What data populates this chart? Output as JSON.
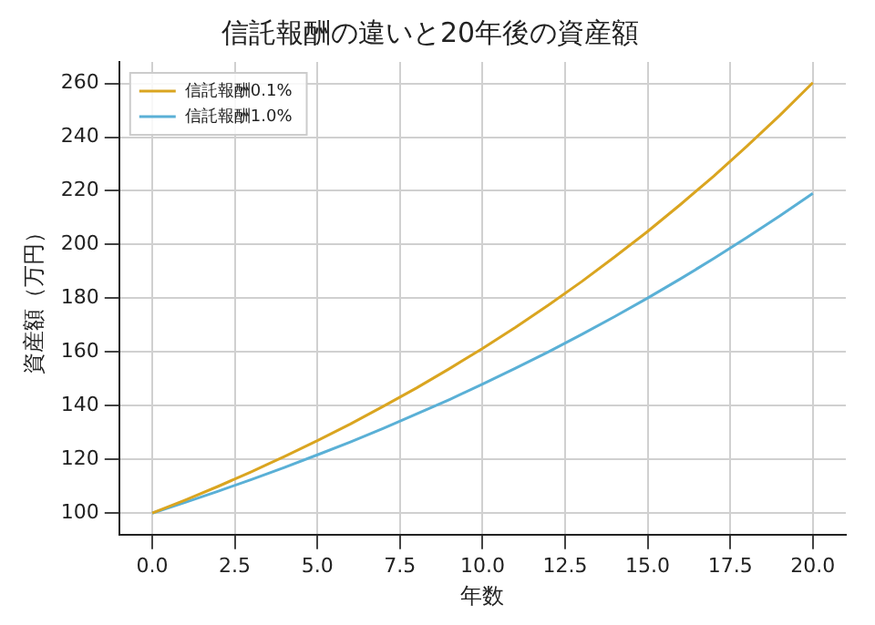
{
  "chart_data": {
    "type": "line",
    "title": "信託報酬の違いと20年後の資産額",
    "xlabel": "年数",
    "ylabel": "資産額（万円）",
    "x": [
      0,
      1,
      2,
      3,
      4,
      5,
      6,
      7,
      8,
      9,
      10,
      11,
      12,
      13,
      14,
      15,
      16,
      17,
      18,
      19,
      20
    ],
    "series": [
      {
        "name": "信託報酬0.1%",
        "color": "#daa520",
        "values": [
          100,
          104.9,
          110,
          115.4,
          121.1,
          127,
          133.2,
          139.8,
          146.6,
          153.8,
          161.3,
          169.2,
          177.5,
          186.2,
          195.4,
          204.9,
          215,
          225.5,
          236.6,
          248.1,
          260.3
        ]
      },
      {
        "name": "信託報酬1.0%",
        "color": "#5ab0d6",
        "values": [
          100,
          104,
          108.2,
          112.5,
          117,
          121.7,
          126.5,
          131.6,
          136.9,
          142.3,
          148,
          154,
          160.1,
          166.5,
          173.2,
          180.1,
          187.3,
          194.8,
          202.6,
          210.7,
          219.1
        ]
      }
    ],
    "xlim": [
      -1,
      21
    ],
    "xticks": [
      {
        "value": 0,
        "label": "0.0"
      },
      {
        "value": 2.5,
        "label": "2.5"
      },
      {
        "value": 5,
        "label": "5.0"
      },
      {
        "value": 7.5,
        "label": "7.5"
      },
      {
        "value": 10,
        "label": "10.0"
      },
      {
        "value": 12.5,
        "label": "12.5"
      },
      {
        "value": 15,
        "label": "15.0"
      },
      {
        "value": 17.5,
        "label": "17.5"
      },
      {
        "value": 20,
        "label": "20.0"
      }
    ],
    "ylim": [
      92,
      268
    ],
    "yticks": [
      100,
      120,
      140,
      160,
      180,
      200,
      220,
      240,
      260
    ],
    "grid": true,
    "legend": "top left",
    "marker": "none",
    "line_style": "solid"
  }
}
